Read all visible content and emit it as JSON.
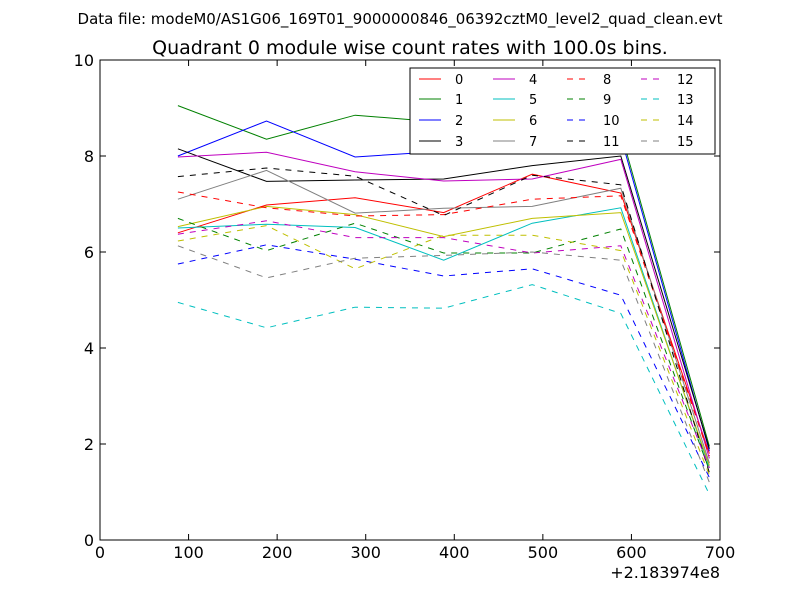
{
  "figure": {
    "suptitle": "Data file: modeM0/AS1G06_169T01_9000000846_06392cztM0_level2_quad_clean.evt"
  },
  "chart_data": {
    "type": "line",
    "title": "Quadrant 0 module wise count rates with 100.0s bins.",
    "xlabel": "",
    "ylabel": "",
    "x_offset_label": "+2.183974e8",
    "xlim": [
      0,
      700
    ],
    "ylim": [
      0,
      10
    ],
    "x_ticks": [
      0,
      100,
      200,
      300,
      400,
      500,
      600,
      700
    ],
    "y_ticks": [
      0,
      2,
      4,
      6,
      8,
      10
    ],
    "grid": false,
    "legend": {
      "placement": "top-right",
      "columns": 4
    },
    "x": [
      88,
      188,
      288,
      388,
      488,
      588,
      688
    ],
    "series": [
      {
        "name": "0",
        "color": "#ff0000",
        "dash": "solid",
        "values": [
          6.4,
          6.98,
          7.13,
          6.82,
          7.62,
          7.23,
          1.8
        ]
      },
      {
        "name": "1",
        "color": "#008000",
        "dash": "solid",
        "values": [
          9.05,
          8.35,
          8.85,
          8.7,
          8.3,
          8.5,
          1.95
        ]
      },
      {
        "name": "2",
        "color": "#0000ff",
        "dash": "solid",
        "values": [
          8.0,
          8.73,
          7.98,
          8.1,
          8.5,
          8.4,
          1.85
        ]
      },
      {
        "name": "3",
        "color": "#000000",
        "dash": "solid",
        "values": [
          8.15,
          7.47,
          7.5,
          7.52,
          7.8,
          8.0,
          1.9
        ]
      },
      {
        "name": "4",
        "color": "#bf00bf",
        "dash": "solid",
        "values": [
          7.98,
          8.08,
          7.67,
          7.48,
          7.52,
          7.93,
          1.7
        ]
      },
      {
        "name": "5",
        "color": "#00bfbf",
        "dash": "solid",
        "values": [
          6.5,
          6.58,
          6.51,
          5.83,
          6.6,
          6.92,
          1.5
        ]
      },
      {
        "name": "6",
        "color": "#bfbf00",
        "dash": "solid",
        "values": [
          6.53,
          6.95,
          6.78,
          6.32,
          6.7,
          6.82,
          1.55
        ]
      },
      {
        "name": "7",
        "color": "#808080",
        "dash": "solid",
        "values": [
          7.1,
          7.7,
          6.81,
          6.91,
          6.95,
          7.33,
          1.6
        ]
      },
      {
        "name": "8",
        "color": "#ff0000",
        "dash": "dashed",
        "values": [
          7.25,
          6.92,
          6.75,
          6.78,
          7.1,
          7.17,
          1.75
        ]
      },
      {
        "name": "9",
        "color": "#008000",
        "dash": "dashed",
        "values": [
          6.7,
          6.03,
          6.6,
          5.98,
          5.98,
          6.48,
          1.45
        ]
      },
      {
        "name": "10",
        "color": "#0000ff",
        "dash": "dashed",
        "values": [
          5.75,
          6.15,
          5.85,
          5.5,
          5.65,
          5.1,
          1.3
        ]
      },
      {
        "name": "11",
        "color": "#000000",
        "dash": "dashed",
        "values": [
          7.57,
          7.75,
          7.58,
          6.76,
          7.6,
          7.4,
          1.4
        ]
      },
      {
        "name": "12",
        "color": "#bf00bf",
        "dash": "dashed",
        "values": [
          6.37,
          6.65,
          6.3,
          6.3,
          5.98,
          6.13,
          1.5
        ]
      },
      {
        "name": "13",
        "color": "#00bfbf",
        "dash": "dashed",
        "values": [
          4.95,
          4.42,
          4.85,
          4.83,
          5.32,
          4.72,
          0.95
        ]
      },
      {
        "name": "14",
        "color": "#bfbf00",
        "dash": "dashed",
        "values": [
          6.23,
          6.55,
          5.65,
          6.35,
          6.35,
          6.03,
          1.35
        ]
      },
      {
        "name": "15",
        "color": "#808080",
        "dash": "dashed",
        "values": [
          6.13,
          5.46,
          5.87,
          5.93,
          6.0,
          5.83,
          1.2
        ]
      }
    ]
  }
}
